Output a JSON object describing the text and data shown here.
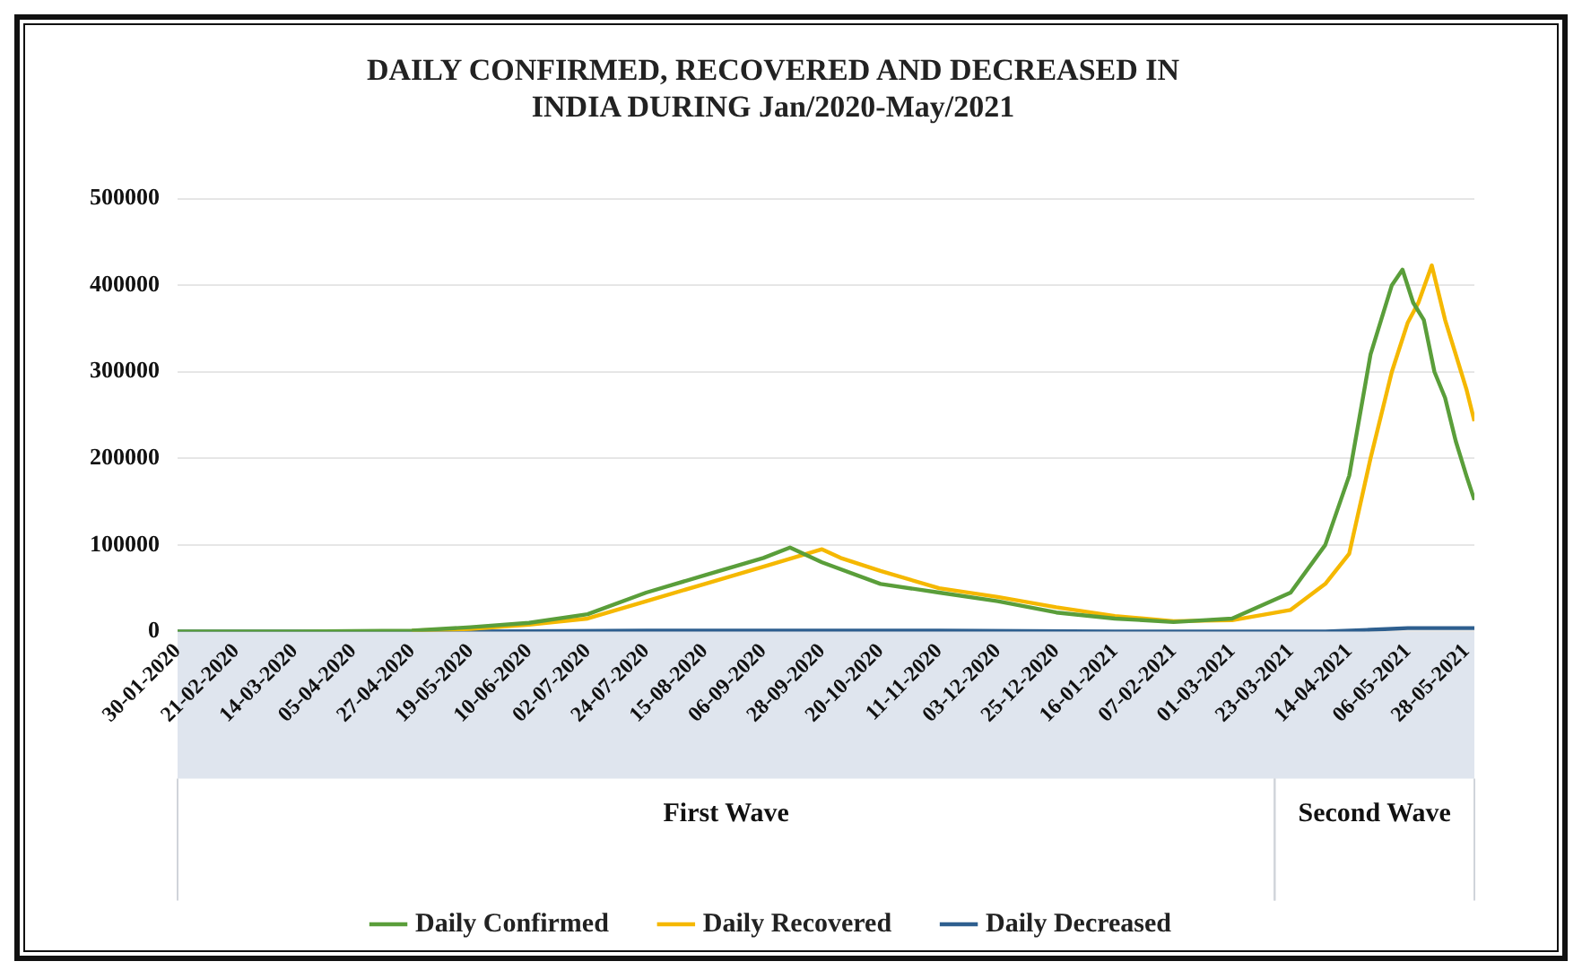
{
  "chart_data": {
    "type": "line",
    "title": "DAILY CONFIRMED, RECOVERED AND DECREASED IN INDIA DURING Jan/2020-May/2021",
    "series": [
      {
        "name": "Daily Confirmed",
        "color": "#5a9e3a",
        "x": [
          "2020-01-30",
          "2020-03-14",
          "2020-04-27",
          "2020-05-19",
          "2020-06-10",
          "2020-07-02",
          "2020-07-24",
          "2020-08-15",
          "2020-09-06",
          "2020-09-16",
          "2020-09-28",
          "2020-10-20",
          "2020-11-11",
          "2020-12-03",
          "2020-12-25",
          "2021-01-16",
          "2021-02-07",
          "2021-03-01",
          "2021-03-23",
          "2021-04-05",
          "2021-04-14",
          "2021-04-22",
          "2021-04-30",
          "2021-05-04",
          "2021-05-08",
          "2021-05-12",
          "2021-05-16",
          "2021-05-20",
          "2021-05-24",
          "2021-05-28",
          "2021-05-31"
        ],
        "values": [
          0,
          0,
          1000,
          5000,
          10000,
          20000,
          45000,
          65000,
          85000,
          97000,
          80000,
          55000,
          45000,
          35000,
          22000,
          15000,
          11000,
          15000,
          45000,
          100000,
          180000,
          320000,
          400000,
          418000,
          380000,
          360000,
          300000,
          270000,
          220000,
          180000,
          152000
        ]
      },
      {
        "name": "Daily Recovered",
        "color": "#f5b800",
        "x": [
          "2020-04-27",
          "2020-05-19",
          "2020-06-10",
          "2020-07-02",
          "2020-07-24",
          "2020-08-15",
          "2020-09-06",
          "2020-09-28",
          "2020-10-05",
          "2020-10-20",
          "2020-11-11",
          "2020-12-03",
          "2020-12-25",
          "2021-01-16",
          "2021-02-07",
          "2021-03-01",
          "2021-03-23",
          "2021-04-05",
          "2021-04-14",
          "2021-04-22",
          "2021-04-30",
          "2021-05-06",
          "2021-05-10",
          "2021-05-15",
          "2021-05-20",
          "2021-05-24",
          "2021-05-28",
          "2021-05-31"
        ],
        "values": [
          1000,
          3000,
          8000,
          15000,
          35000,
          55000,
          75000,
          95000,
          85000,
          70000,
          50000,
          40000,
          28000,
          18000,
          12000,
          13000,
          25000,
          55000,
          90000,
          200000,
          300000,
          357000,
          380000,
          423000,
          360000,
          320000,
          280000,
          243000
        ]
      },
      {
        "name": "Daily Decreased",
        "color": "#2e5f8f",
        "x": [
          "2020-01-30",
          "2020-05-19",
          "2020-07-24",
          "2020-09-16",
          "2020-11-11",
          "2021-01-16",
          "2021-03-01",
          "2021-04-05",
          "2021-04-22",
          "2021-05-06",
          "2021-05-20",
          "2021-05-31"
        ],
        "values": [
          0,
          0,
          1000,
          1000,
          1000,
          0,
          0,
          0,
          2000,
          4000,
          4000,
          4000
        ]
      }
    ],
    "xlim": [
      "2020-01-30",
      "2021-05-31"
    ],
    "xticks": [
      {
        "value": "2020-01-30",
        "label": "30-01-2020"
      },
      {
        "value": "2020-02-21",
        "label": "21-02-2020"
      },
      {
        "value": "2020-03-14",
        "label": "14-03-2020"
      },
      {
        "value": "2020-04-05",
        "label": "05-04-2020"
      },
      {
        "value": "2020-04-27",
        "label": "27-04-2020"
      },
      {
        "value": "2020-05-19",
        "label": "19-05-2020"
      },
      {
        "value": "2020-06-10",
        "label": "10-06-2020"
      },
      {
        "value": "2020-07-02",
        "label": "02-07-2020"
      },
      {
        "value": "2020-07-24",
        "label": "24-07-2020"
      },
      {
        "value": "2020-08-15",
        "label": "15-08-2020"
      },
      {
        "value": "2020-09-06",
        "label": "06-09-2020"
      },
      {
        "value": "2020-09-28",
        "label": "28-09-2020"
      },
      {
        "value": "2020-10-20",
        "label": "20-10-2020"
      },
      {
        "value": "2020-11-11",
        "label": "11-11-2020"
      },
      {
        "value": "2020-12-03",
        "label": "03-12-2020"
      },
      {
        "value": "2020-12-25",
        "label": "25-12-2020"
      },
      {
        "value": "2021-01-16",
        "label": "16-01-2021"
      },
      {
        "value": "2021-02-07",
        "label": "07-02-2021"
      },
      {
        "value": "2021-03-01",
        "label": "01-03-2021"
      },
      {
        "value": "2021-03-23",
        "label": "23-03-2021"
      },
      {
        "value": "2021-04-14",
        "label": "14-04-2021"
      },
      {
        "value": "2021-05-06",
        "label": "06-05-2021"
      },
      {
        "value": "2021-05-28",
        "label": "28-05-2021"
      }
    ],
    "ylim": [
      0,
      500000
    ],
    "yticks": [
      0,
      100000,
      200000,
      300000,
      400000,
      500000
    ],
    "annotations": [
      "First Wave",
      "Second Wave"
    ],
    "grid": "y",
    "legend": "bottom",
    "marker": "none",
    "line_style": "solid"
  }
}
